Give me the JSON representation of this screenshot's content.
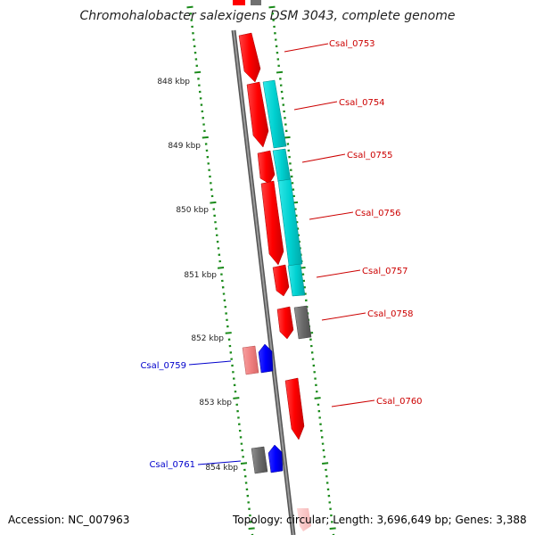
{
  "title": "Chromohalobacter salexigens DSM 3043, complete genome",
  "footer": {
    "accession": "Accession: NC_007963",
    "topology": "Topology: circular; Length: 3,696,649 bp; Genes: 3,388"
  },
  "colors": {
    "backbone": "#808080",
    "tick": "#1a8a1a",
    "gene_forward": "#ff0000",
    "gene_light": "#f08080",
    "gene_hit": "#00d0d0",
    "gene_gray": "#707070",
    "gene_blue": "#0000ff",
    "label_red": "#cc0000",
    "label_blue": "#0000cc"
  },
  "scale_labels": [
    "848 kbp",
    "849 kbp",
    "850 kbp",
    "851 kbp",
    "852 kbp",
    "853 kbp",
    "854 kbp"
  ],
  "gene_labels_right": [
    "Csal_0753",
    "Csal_0754",
    "Csal_0755",
    "Csal_0756",
    "Csal_0757",
    "Csal_0758",
    "Csal_0760"
  ],
  "gene_labels_left": [
    "Csal_0759",
    "Csal_0761"
  ]
}
